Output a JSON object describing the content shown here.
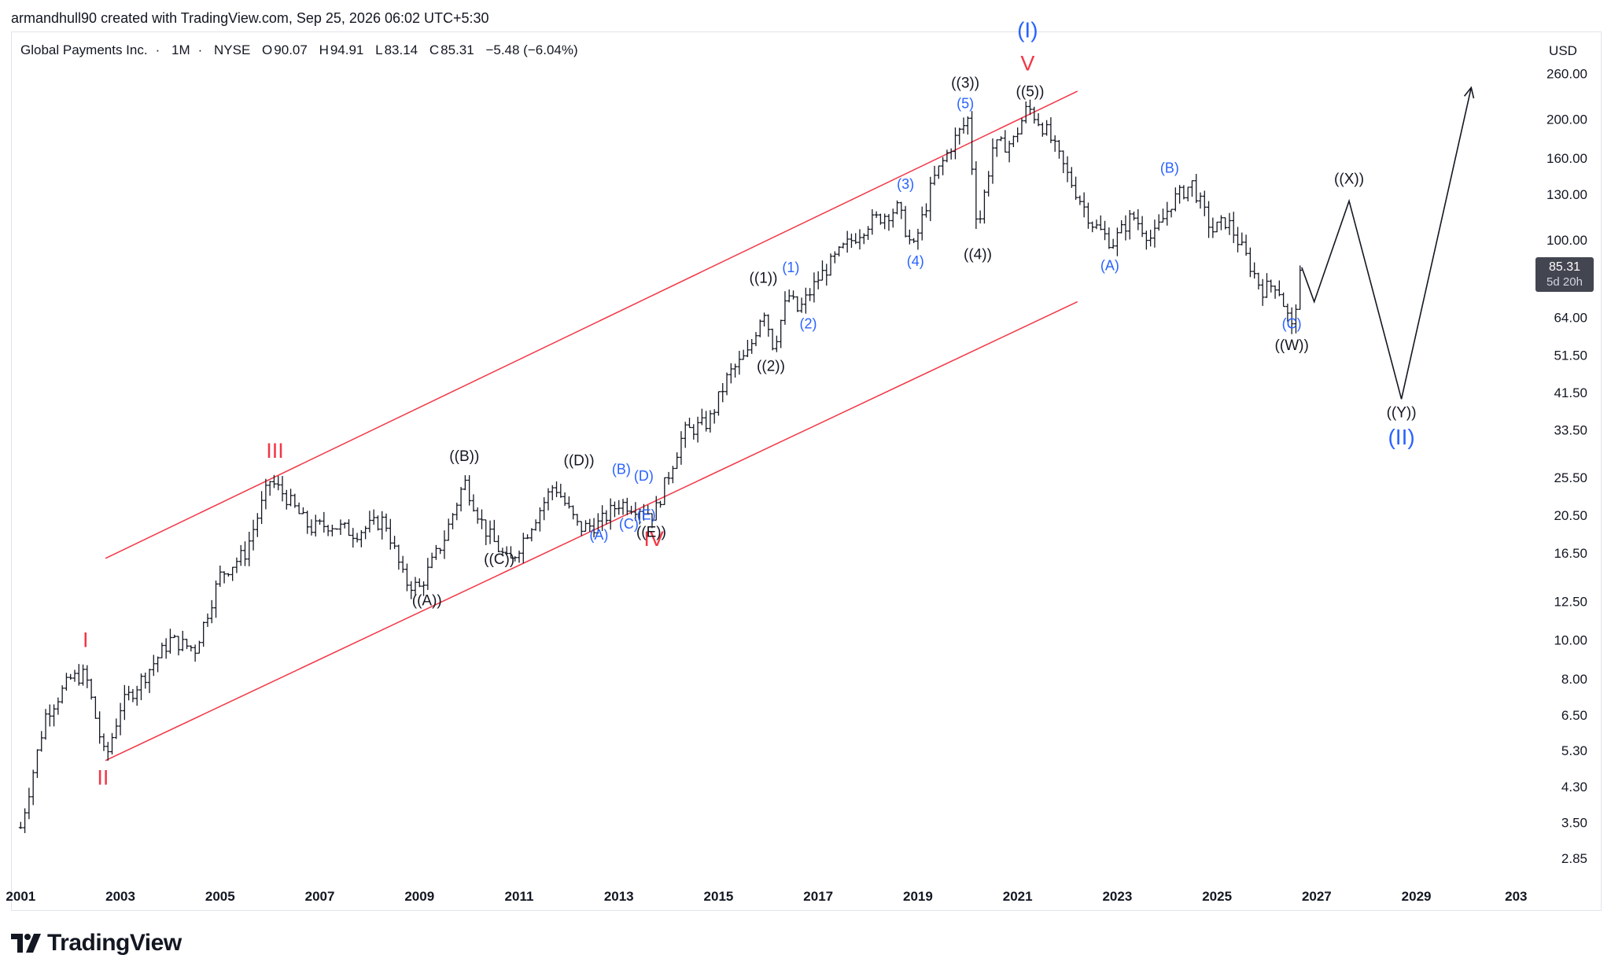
{
  "header": {
    "attribution": "armandhull90 created with TradingView.com, Sep 25, 2026 06:02 UTC+5:30"
  },
  "symbol": {
    "name": "Global Payments Inc.",
    "interval": "1M",
    "exchange": "NYSE",
    "separator": "·",
    "ohlc": {
      "o_key": "O",
      "o": "90.07",
      "h_key": "H",
      "h": "94.91",
      "l_key": "L",
      "l": "83.14",
      "c_key": "C",
      "c": "85.31",
      "change": "−5.48 (−6.04%)"
    }
  },
  "currency_button": "USD",
  "last_price_tag": {
    "price": "85.31",
    "countdown": "5d 20h"
  },
  "brand": {
    "name": "TradingView",
    "logo_icon": "tradingview-logo-icon"
  },
  "colors": {
    "channel": "#f23645",
    "blue_labels": "#2962ff",
    "dark_labels": "#131722",
    "bars": "#131722",
    "grid_text": "#131722"
  },
  "chart_data": {
    "type": "line",
    "title": "",
    "series": [
      {
        "values_x": [
          2001.0,
          2001.5,
          2002.0,
          2002.3,
          2002.7,
          2003.0,
          2003.5,
          2004.0,
          2004.5,
          2005.0,
          2005.5,
          2006.0,
          2006.3,
          2006.8,
          2007.2,
          2007.7,
          2008.3,
          2008.7,
          2009.0,
          2009.5,
          2009.9,
          2010.3,
          2010.8,
          2011.3,
          2011.7,
          2012.2,
          2012.6,
          2013.0,
          2013.4,
          2013.7,
          2014.3,
          2014.8,
          2015.2,
          2015.6,
          2015.9,
          2016.1,
          2016.4,
          2016.6,
          2017.0,
          2017.5,
          2018.0,
          2018.6,
          2018.9,
          2019.3,
          2019.7,
          2020.0,
          2020.2,
          2020.5,
          2020.9,
          2021.2,
          2021.6,
          2022.0,
          2022.5,
          2022.9,
          2023.3,
          2023.7,
          2024.1,
          2024.5,
          2024.9,
          2025.2,
          2025.5,
          2025.9,
          2026.2,
          2026.5,
          2026.7
        ],
        "values_y": [
          3.4,
          6.5,
          8.0,
          8.2,
          5.0,
          6.8,
          8.2,
          10.0,
          9.5,
          14.5,
          16.5,
          25.0,
          23.0,
          19.0,
          19.5,
          18.5,
          20.0,
          14.0,
          13.5,
          18.0,
          25.0,
          19.0,
          15.5,
          20.0,
          24.5,
          19.0,
          19.5,
          22.0,
          21.5,
          20.5,
          33.0,
          35.0,
          46.0,
          52.0,
          68.0,
          54.0,
          73.0,
          66.0,
          80.0,
          95.0,
          110.0,
          120.0,
          94.0,
          140.0,
          175.0,
          200.0,
          105.0,
          170.0,
          175.0,
          215.0,
          185.0,
          145.0,
          110.0,
          98.0,
          115.0,
          100.0,
          125.0,
          138.0,
          105.0,
          112.0,
          95.0,
          75.0,
          78.0,
          60.0,
          85.3
        ]
      }
    ],
    "projection": {
      "x": [
        2026.7,
        2026.95,
        2027.65,
        2028.7,
        2030.1
      ],
      "y": [
        85.3,
        70.0,
        125.0,
        40.0,
        240.0
      ]
    },
    "channel": {
      "upper": {
        "x": [
          2002.7,
          2022.2
        ],
        "y": [
          16.0,
          235.0
        ]
      },
      "lower": {
        "x": [
          2002.7,
          2022.2
        ],
        "y": [
          5.0,
          70.0
        ]
      }
    },
    "x_ticks": [
      "2001",
      "2003",
      "2005",
      "2007",
      "2009",
      "2011",
      "2013",
      "2015",
      "2017",
      "2019",
      "2021",
      "2023",
      "2025",
      "2027",
      "2029",
      "203"
    ],
    "y_ticks": [
      "260.00",
      "200.00",
      "160.00",
      "130.00",
      "100.00",
      "64.00",
      "51.50",
      "41.50",
      "33.50",
      "25.50",
      "20.50",
      "16.50",
      "12.50",
      "10.00",
      "8.00",
      "6.50",
      "5.30",
      "4.30",
      "3.50",
      "2.85"
    ],
    "y_scale": "log",
    "xlim": [
      2000.9,
      2031.2
    ],
    "ylim": [
      2.5,
      300
    ],
    "annotations": [
      {
        "text": "I",
        "x": 2002.3,
        "y": 9.6,
        "color": "red"
      },
      {
        "text": "II",
        "x": 2002.65,
        "y": 4.35,
        "color": "red"
      },
      {
        "text": "III",
        "x": 2006.1,
        "y": 28.5,
        "color": "red"
      },
      {
        "text": "IV",
        "x": 2013.7,
        "y": 17.2,
        "color": "red"
      },
      {
        "text": "V",
        "x": 2021.2,
        "y": 265.0,
        "color": "red"
      },
      {
        "text": "(I)",
        "x": 2021.2,
        "y": 320.0,
        "color": "blue_large"
      },
      {
        "text": "(II)",
        "x": 2028.7,
        "y": 30.8,
        "color": "blue_large"
      },
      {
        "text": "((A))",
        "x": 2009.15,
        "y": 12.2,
        "color": "dark"
      },
      {
        "text": "((B))",
        "x": 2009.9,
        "y": 28.0,
        "color": "dark"
      },
      {
        "text": "((C))",
        "x": 2010.6,
        "y": 15.5,
        "color": "dark"
      },
      {
        "text": "((D))",
        "x": 2012.2,
        "y": 27.3,
        "color": "dark"
      },
      {
        "text": "((E))",
        "x": 2013.65,
        "y": 18.1,
        "color": "dark"
      },
      {
        "text": "((1))",
        "x": 2015.9,
        "y": 78.0,
        "color": "dark"
      },
      {
        "text": "((2))",
        "x": 2016.05,
        "y": 47.0,
        "color": "dark"
      },
      {
        "text": "((3))",
        "x": 2019.95,
        "y": 240.0,
        "color": "dark"
      },
      {
        "text": "((4))",
        "x": 2020.2,
        "y": 89.5,
        "color": "dark"
      },
      {
        "text": "((5))",
        "x": 2021.25,
        "y": 228.0,
        "color": "dark"
      },
      {
        "text": "((W))",
        "x": 2026.5,
        "y": 53.0,
        "color": "dark"
      },
      {
        "text": "((X))",
        "x": 2027.65,
        "y": 138.0,
        "color": "dark"
      },
      {
        "text": "((Y))",
        "x": 2028.7,
        "y": 36.0,
        "color": "dark"
      },
      {
        "text": "(1)",
        "x": 2016.45,
        "y": 83.0,
        "color": "blue"
      },
      {
        "text": "(2)",
        "x": 2016.8,
        "y": 60.0,
        "color": "blue"
      },
      {
        "text": "(3)",
        "x": 2018.75,
        "y": 134.0,
        "color": "blue"
      },
      {
        "text": "(4)",
        "x": 2018.95,
        "y": 86.0,
        "color": "blue"
      },
      {
        "text": "(5)",
        "x": 2019.95,
        "y": 213.0,
        "color": "blue"
      },
      {
        "text": "(A)",
        "x": 2012.6,
        "y": 17.8,
        "color": "blue"
      },
      {
        "text": "(B)",
        "x": 2013.05,
        "y": 26.0,
        "color": "blue"
      },
      {
        "text": "(C)",
        "x": 2013.2,
        "y": 19.0,
        "color": "blue"
      },
      {
        "text": "(D)",
        "x": 2013.5,
        "y": 25.0,
        "color": "blue"
      },
      {
        "text": "(E)",
        "x": 2013.55,
        "y": 20.0,
        "color": "blue"
      },
      {
        "text": "(A)",
        "x": 2022.85,
        "y": 84.0,
        "color": "blue"
      },
      {
        "text": "(B)",
        "x": 2024.05,
        "y": 147.0,
        "color": "blue"
      },
      {
        "text": "(C)",
        "x": 2026.5,
        "y": 60.0,
        "color": "blue"
      }
    ]
  }
}
